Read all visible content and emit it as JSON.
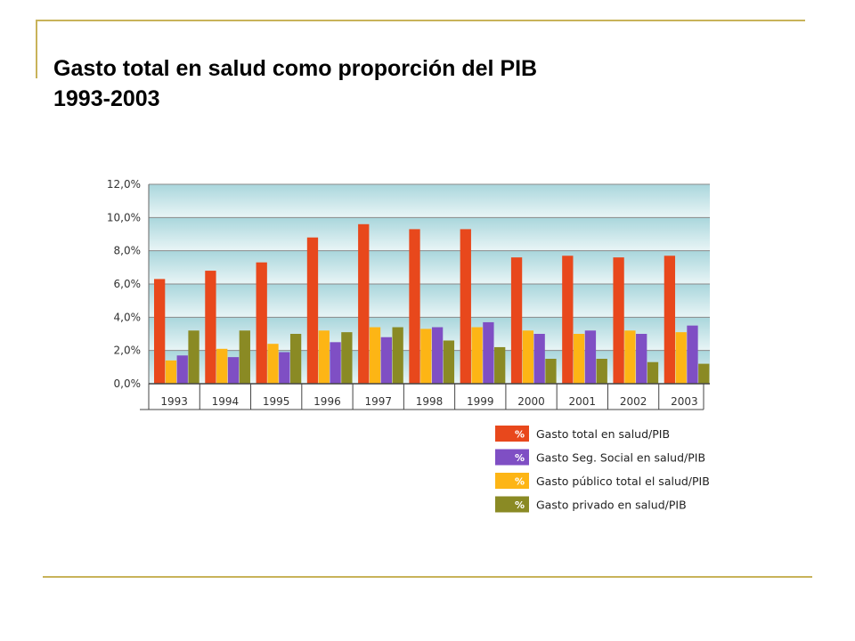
{
  "title": {
    "line1": "Gasto total en salud como proporción del PIB",
    "line2": "1993-2003"
  },
  "chart_data": {
    "type": "bar",
    "title": "Gasto total en salud como proporción del PIB 1993-2003",
    "xlabel": "",
    "ylabel": "",
    "categories": [
      "1993",
      "1994",
      "1995",
      "1996",
      "1997",
      "1998",
      "1999",
      "2000",
      "2001",
      "2002",
      "2003"
    ],
    "ylim": [
      0,
      12
    ],
    "yticks": [
      "0,0%",
      "2,0%",
      "4,0%",
      "6,0%",
      "8,0%",
      "10,0%",
      "12,0%"
    ],
    "grid": true,
    "legend_position": "bottom-right",
    "legend_marker": "%",
    "series": [
      {
        "name": "Gasto total en salud/PIB",
        "color": "#e8481c",
        "values": [
          6.3,
          6.8,
          7.3,
          8.8,
          9.6,
          9.3,
          9.3,
          7.6,
          7.7,
          7.6,
          7.7
        ]
      },
      {
        "name": "Gasto público total el salud/PIB",
        "color": "#fdb515",
        "values": [
          1.4,
          2.1,
          2.4,
          3.2,
          3.4,
          3.3,
          3.4,
          3.2,
          3.0,
          3.2,
          3.1
        ]
      },
      {
        "name": "Gasto Seg. Social en salud/PIB",
        "color": "#7f4fc4",
        "values": [
          1.7,
          1.6,
          1.9,
          2.5,
          2.8,
          3.4,
          3.7,
          3.0,
          3.2,
          3.0,
          3.5
        ]
      },
      {
        "name": "Gasto privado en salud/PIB",
        "color": "#8a8a24",
        "values": [
          3.2,
          3.2,
          3.0,
          3.1,
          3.4,
          2.6,
          2.2,
          1.5,
          1.5,
          1.3,
          1.2
        ]
      }
    ],
    "legend_order": [
      "Gasto total en salud/PIB",
      "Gasto Seg. Social en salud/PIB",
      "Gasto público total el salud/PIB",
      "Gasto privado en salud/PIB"
    ]
  }
}
